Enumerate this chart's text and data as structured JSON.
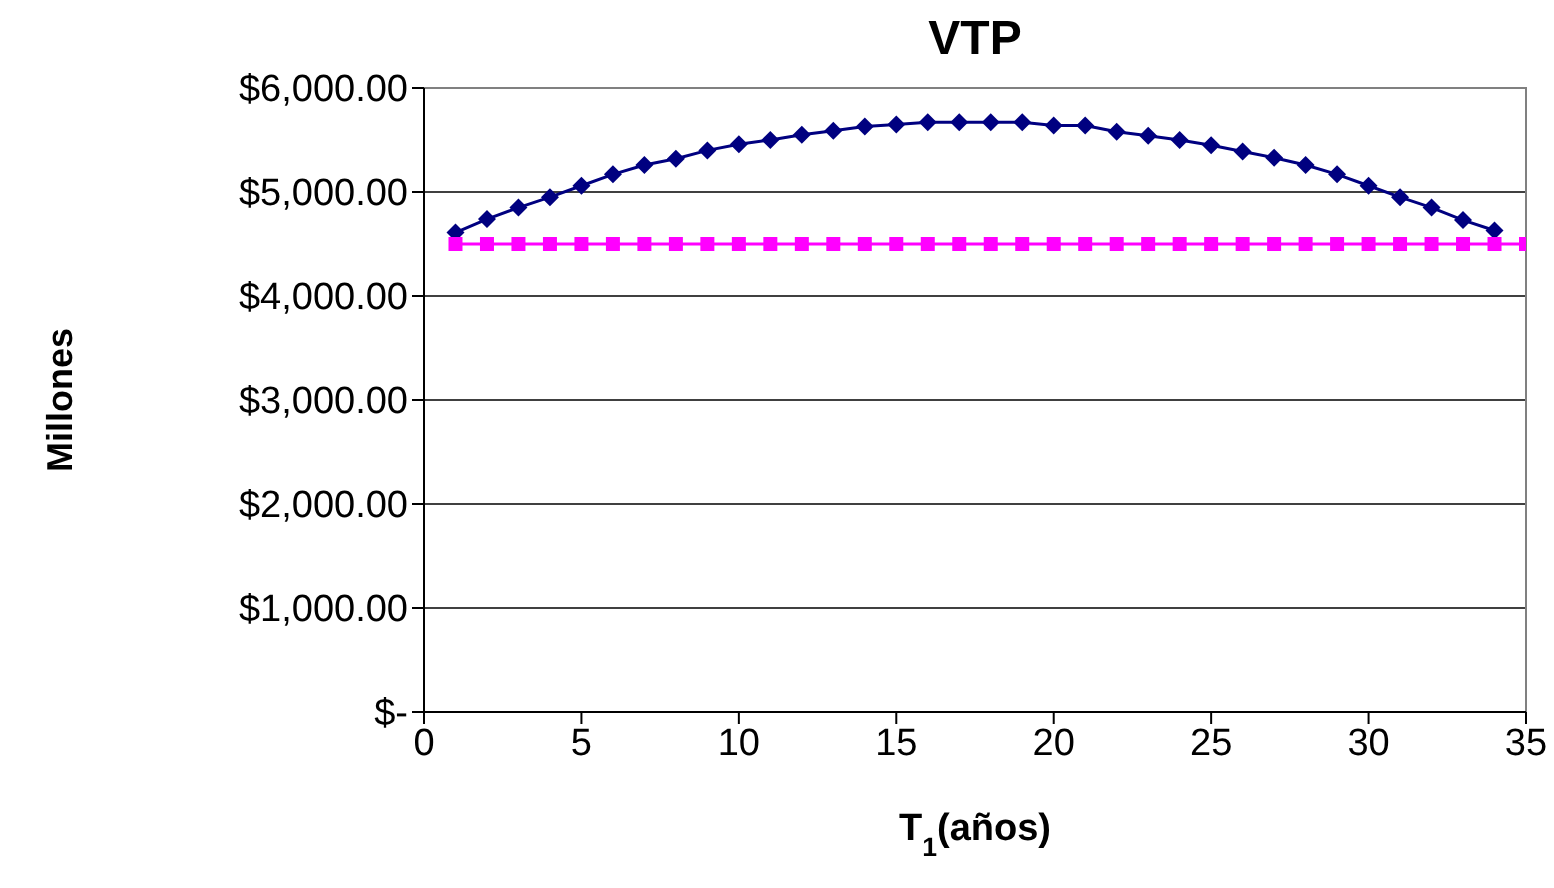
{
  "chart_data": {
    "type": "line",
    "title": "VTP",
    "xlabel": "T$_{1}$(años)",
    "ylabel": "Millones",
    "xlim": [
      0,
      35
    ],
    "xticks": [
      0,
      5,
      10,
      15,
      20,
      25,
      30,
      35
    ],
    "ylim": [
      0,
      6000
    ],
    "yticks": [
      {
        "value": 0,
        "label": "$-"
      },
      {
        "value": 1000,
        "label": "$1,000.00"
      },
      {
        "value": 2000,
        "label": "$2,000.00"
      },
      {
        "value": 3000,
        "label": "$3,000.00"
      },
      {
        "value": 4000,
        "label": "$4,000.00"
      },
      {
        "value": 5000,
        "label": "$5,000.00"
      },
      {
        "value": 6000,
        "label": "$6,000.00"
      }
    ],
    "grid": "y",
    "line_style": "solid",
    "series": [
      {
        "color": "#000080",
        "marker": "diamond",
        "x": [
          1,
          2,
          3,
          4,
          5,
          6,
          7,
          8,
          9,
          10,
          11,
          12,
          13,
          14,
          15,
          16,
          17,
          18,
          19,
          20,
          21,
          22,
          23,
          24,
          25,
          26,
          27,
          28,
          29,
          30,
          31,
          32,
          33,
          34
        ],
        "values": [
          4610,
          4740,
          4850,
          4950,
          5060,
          5170,
          5260,
          5320,
          5400,
          5460,
          5500,
          5550,
          5590,
          5630,
          5650,
          5670,
          5670,
          5670,
          5670,
          5640,
          5640,
          5580,
          5540,
          5500,
          5450,
          5390,
          5330,
          5260,
          5170,
          5060,
          4950,
          4850,
          4730,
          4630
        ]
      },
      {
        "color": "#ff00ff",
        "marker": "square",
        "x": [
          1,
          2,
          3,
          4,
          5,
          6,
          7,
          8,
          9,
          10,
          11,
          12,
          13,
          14,
          15,
          16,
          17,
          18,
          19,
          20,
          21,
          22,
          23,
          24,
          25,
          26,
          27,
          28,
          29,
          30,
          31,
          32,
          33,
          34,
          35
        ],
        "values": [
          4500,
          4500,
          4500,
          4500,
          4500,
          4500,
          4500,
          4500,
          4500,
          4500,
          4500,
          4500,
          4500,
          4500,
          4500,
          4500,
          4500,
          4500,
          4500,
          4500,
          4500,
          4500,
          4500,
          4500,
          4500,
          4500,
          4500,
          4500,
          4500,
          4500,
          4500,
          4500,
          4500,
          4500,
          4500
        ]
      }
    ]
  }
}
